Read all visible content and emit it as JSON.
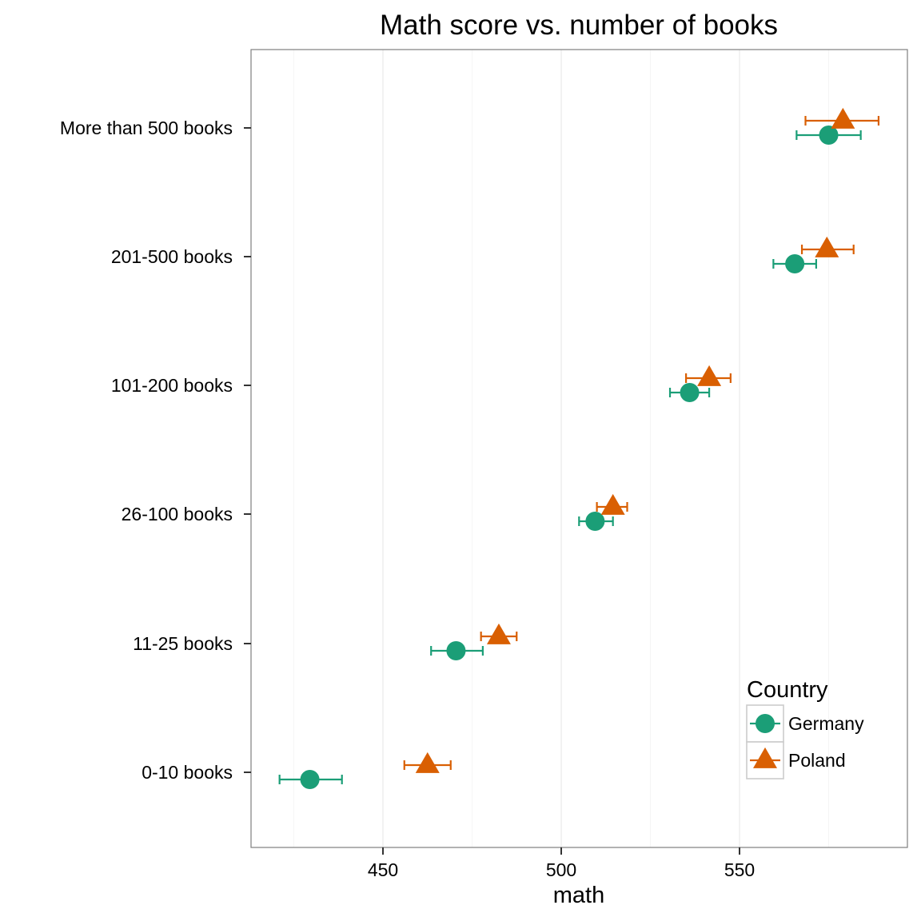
{
  "chart_data": {
    "type": "scatter",
    "title": "Math score vs. number of books",
    "xlabel": "math",
    "ylabel": "",
    "xlim": [
      412,
      596
    ],
    "xticks": [
      450,
      500,
      550
    ],
    "xtick_labels": [
      "450",
      "500",
      "550"
    ],
    "categories": [
      "0-10 books",
      "11-25 books",
      "26-100 books",
      "101-200 books",
      "201-500 books",
      "More than 500 books"
    ],
    "grid": true,
    "error_bars": true,
    "legend": {
      "title": "Country",
      "placement": "bottom-right"
    },
    "series": [
      {
        "name": "Germany",
        "color": "#1b9e77",
        "marker": "circle",
        "values": [
          429.5,
          470.5,
          509.5,
          536.0,
          565.5,
          575.0
        ],
        "lower": [
          421.0,
          463.5,
          505.0,
          530.5,
          559.5,
          566.0
        ],
        "upper": [
          438.5,
          478.0,
          514.5,
          541.5,
          571.5,
          584.0
        ]
      },
      {
        "name": "Poland",
        "color": "#d95f02",
        "marker": "triangle",
        "values": [
          462.5,
          482.5,
          514.5,
          541.5,
          574.5,
          579.0
        ],
        "lower": [
          456.0,
          477.5,
          510.0,
          535.0,
          567.5,
          568.5
        ],
        "upper": [
          469.0,
          487.5,
          518.5,
          547.5,
          582.0,
          589.0
        ]
      }
    ]
  }
}
